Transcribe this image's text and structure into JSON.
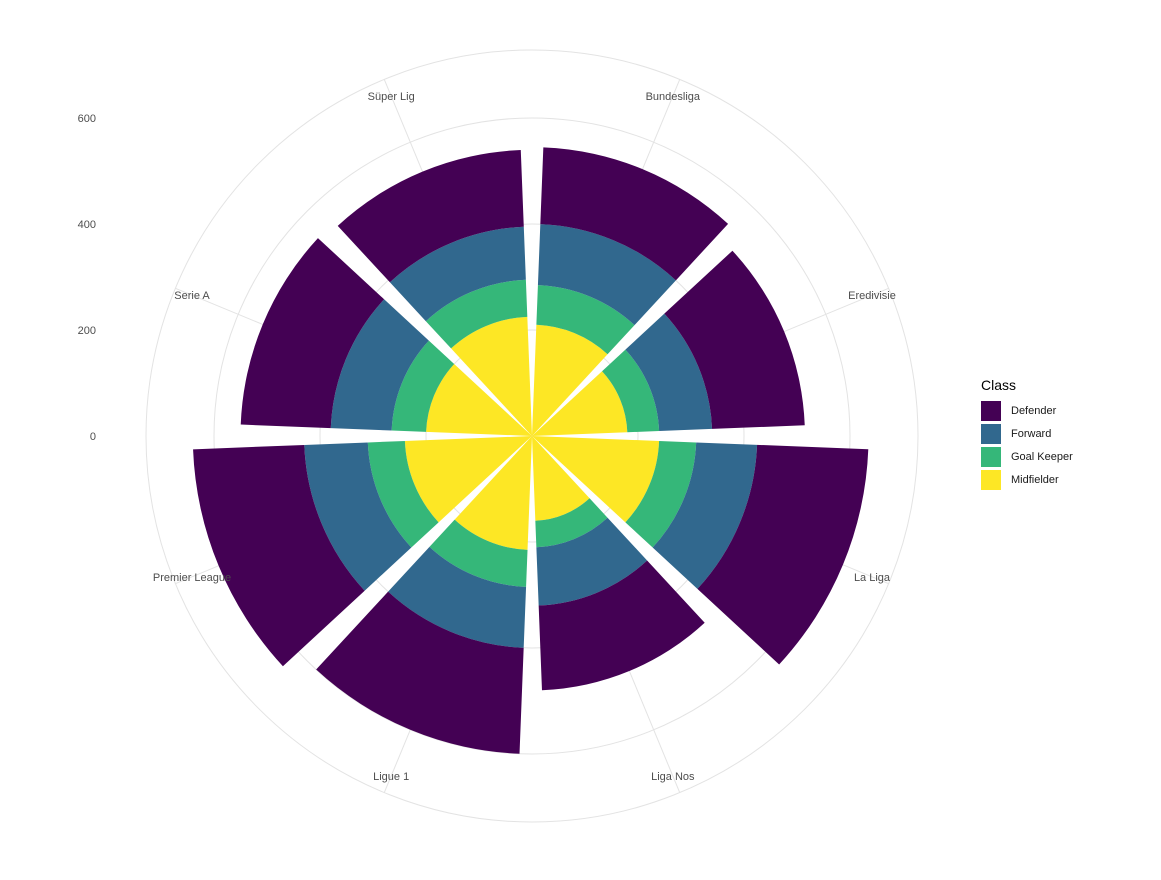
{
  "chart_data": {
    "type": "bar",
    "coord": "polar",
    "stacked": true,
    "categories": [
      "Bundesliga",
      "Eredivisie",
      "La Liga",
      "Liga Nos",
      "Ligue 1",
      "Premier League",
      "Serie A",
      "Süper Lig"
    ],
    "series": [
      {
        "name": "Midfielder",
        "color": "#fde725",
        "values": [
          210,
          180,
          240,
          160,
          215,
          240,
          200,
          225
        ]
      },
      {
        "name": "Goal Keeper",
        "color": "#35b779",
        "values": [
          75,
          60,
          70,
          50,
          70,
          70,
          65,
          70
        ]
      },
      {
        "name": "Forward",
        "color": "#31688e",
        "values": [
          115,
          100,
          115,
          110,
          115,
          120,
          115,
          100
        ]
      },
      {
        "name": "Defender",
        "color": "#440154",
        "values": [
          145,
          175,
          210,
          160,
          200,
          210,
          170,
          145
        ]
      }
    ],
    "stack_order_outward": [
      "Midfielder",
      "Goal Keeper",
      "Forward",
      "Defender"
    ],
    "r_ticks": [
      0,
      200,
      400,
      600
    ],
    "rlim": [
      0,
      600
    ],
    "grid": true,
    "legend": {
      "title": "Class",
      "position": "right",
      "entries": [
        {
          "label": "Defender",
          "color": "#440154"
        },
        {
          "label": "Forward",
          "color": "#31688e"
        },
        {
          "label": "Goal Keeper",
          "color": "#35b779"
        },
        {
          "label": "Midfielder",
          "color": "#fde725"
        }
      ]
    }
  }
}
